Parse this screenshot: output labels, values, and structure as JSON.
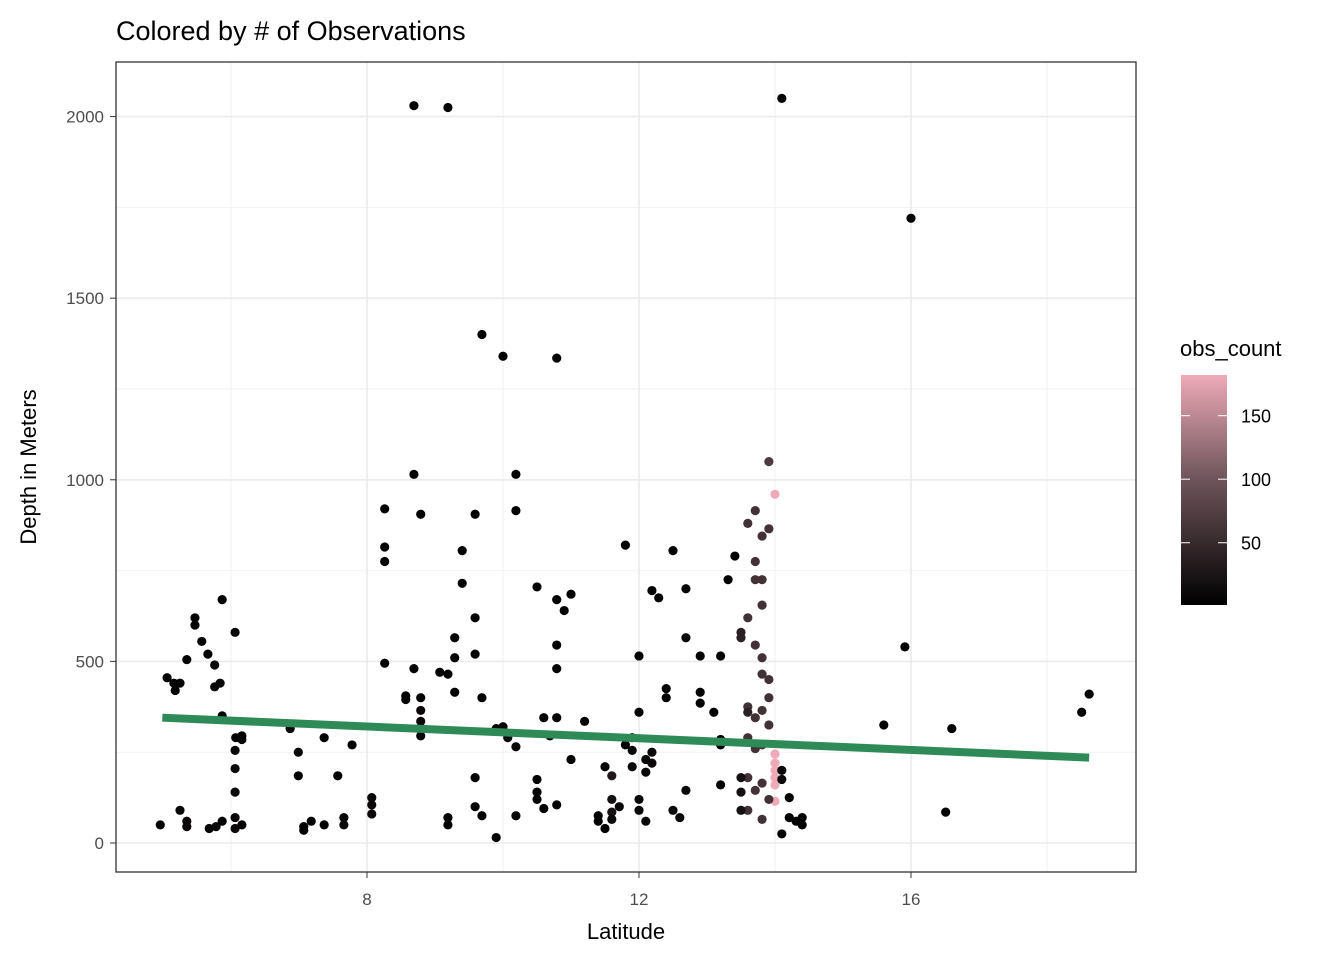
{
  "chart_data": {
    "type": "scatter",
    "title": "Colored by # of Observations",
    "xlabel": "Latitude",
    "ylabel": "Depth in Meters",
    "xlim": [
      4.6,
      19.6
    ],
    "ylim": [
      -80,
      2150
    ],
    "x_ticks": [
      {
        "value": 8,
        "label": "8"
      },
      {
        "value": 12,
        "label": "12"
      },
      {
        "value": 16,
        "label": "16"
      }
    ],
    "y_ticks": [
      {
        "value": 0,
        "label": "0"
      },
      {
        "value": 500,
        "label": "500"
      },
      {
        "value": 1000,
        "label": "1000"
      },
      {
        "value": 1500,
        "label": "1500"
      },
      {
        "value": 2000,
        "label": "2000"
      }
    ],
    "grid": true,
    "legend": {
      "title": "obs_count",
      "placement": "right",
      "range": [
        1,
        182
      ],
      "ticks": [
        {
          "value": 50,
          "label": "50"
        },
        {
          "value": 100,
          "label": "100"
        },
        {
          "value": 150,
          "label": "150"
        }
      ],
      "low_color": "#000000",
      "mid_color": "#6f555b",
      "high_color": "#eeaab8"
    },
    "trend_line": {
      "type": "linear",
      "color": "#2e8b57",
      "x": [
        4.99,
        18.62
      ],
      "y": [
        345,
        235
      ]
    },
    "points": [
      [
        4.96,
        50,
        5
      ],
      [
        5.06,
        455,
        5
      ],
      [
        5.16,
        440,
        5
      ],
      [
        5.18,
        420,
        5
      ],
      [
        5.25,
        440,
        5
      ],
      [
        5.25,
        90,
        10
      ],
      [
        5.35,
        60,
        10
      ],
      [
        5.35,
        45,
        10
      ],
      [
        5.35,
        505,
        5
      ],
      [
        5.47,
        620,
        5
      ],
      [
        5.47,
        600,
        5
      ],
      [
        5.57,
        555,
        5
      ],
      [
        5.66,
        520,
        5
      ],
      [
        5.68,
        40,
        5
      ],
      [
        5.76,
        490,
        10
      ],
      [
        5.76,
        430,
        10
      ],
      [
        5.78,
        45,
        10
      ],
      [
        5.84,
        440,
        10
      ],
      [
        5.87,
        670,
        5
      ],
      [
        5.87,
        60,
        5
      ],
      [
        5.87,
        350,
        5
      ],
      [
        6.06,
        580,
        10
      ],
      [
        6.06,
        255,
        10
      ],
      [
        6.06,
        205,
        10
      ],
      [
        6.06,
        140,
        10
      ],
      [
        6.06,
        70,
        10
      ],
      [
        6.06,
        40,
        10
      ],
      [
        6.07,
        290,
        5
      ],
      [
        6.16,
        295,
        5
      ],
      [
        6.16,
        285,
        5
      ],
      [
        6.16,
        50,
        5
      ],
      [
        6.87,
        315,
        10
      ],
      [
        6.99,
        250,
        10
      ],
      [
        6.99,
        185,
        5
      ],
      [
        7.07,
        45,
        5
      ],
      [
        7.07,
        35,
        5
      ],
      [
        7.18,
        60,
        5
      ],
      [
        7.37,
        290,
        5
      ],
      [
        7.37,
        50,
        5
      ],
      [
        7.57,
        185,
        5
      ],
      [
        7.66,
        70,
        10
      ],
      [
        7.66,
        50,
        10
      ],
      [
        7.78,
        270,
        5
      ],
      [
        8.07,
        125,
        10
      ],
      [
        8.07,
        105,
        10
      ],
      [
        8.07,
        80,
        10
      ],
      [
        8.26,
        920,
        5
      ],
      [
        8.26,
        815,
        5
      ],
      [
        8.26,
        775,
        5
      ],
      [
        8.26,
        495,
        5
      ],
      [
        8.57,
        405,
        5
      ],
      [
        8.57,
        395,
        5
      ],
      [
        8.69,
        2030,
        5
      ],
      [
        8.69,
        1015,
        5
      ],
      [
        8.69,
        480,
        5
      ],
      [
        8.79,
        905,
        5
      ],
      [
        8.79,
        400,
        5
      ],
      [
        8.79,
        365,
        10
      ],
      [
        8.79,
        335,
        10
      ],
      [
        8.79,
        295,
        10
      ],
      [
        9.07,
        470,
        5
      ],
      [
        9.19,
        2025,
        5
      ],
      [
        9.19,
        465,
        5
      ],
      [
        9.19,
        70,
        5
      ],
      [
        9.19,
        50,
        5
      ],
      [
        9.29,
        565,
        5
      ],
      [
        9.29,
        510,
        5
      ],
      [
        9.29,
        415,
        5
      ],
      [
        9.4,
        805,
        5
      ],
      [
        9.4,
        715,
        5
      ],
      [
        9.59,
        905,
        5
      ],
      [
        9.59,
        620,
        5
      ],
      [
        9.59,
        520,
        5
      ],
      [
        9.59,
        180,
        5
      ],
      [
        9.59,
        100,
        5
      ],
      [
        9.69,
        1400,
        5
      ],
      [
        9.69,
        400,
        5
      ],
      [
        9.69,
        75,
        5
      ],
      [
        9.9,
        315,
        5
      ],
      [
        9.9,
        15,
        5
      ],
      [
        10.0,
        1340,
        5
      ],
      [
        10.0,
        320,
        5
      ],
      [
        10.07,
        290,
        10
      ],
      [
        10.19,
        1015,
        5
      ],
      [
        10.19,
        915,
        5
      ],
      [
        10.19,
        265,
        10
      ],
      [
        10.19,
        75,
        10
      ],
      [
        10.5,
        705,
        5
      ],
      [
        10.5,
        175,
        5
      ],
      [
        10.5,
        140,
        5
      ],
      [
        10.5,
        120,
        5
      ],
      [
        10.6,
        345,
        5
      ],
      [
        10.6,
        95,
        5
      ],
      [
        10.69,
        295,
        5
      ],
      [
        10.79,
        1335,
        5
      ],
      [
        10.79,
        670,
        5
      ],
      [
        10.79,
        545,
        5
      ],
      [
        10.79,
        480,
        5
      ],
      [
        10.79,
        345,
        5
      ],
      [
        10.79,
        105,
        5
      ],
      [
        10.9,
        640,
        5
      ],
      [
        11.0,
        685,
        5
      ],
      [
        11.0,
        230,
        5
      ],
      [
        11.2,
        335,
        5
      ],
      [
        11.4,
        75,
        5
      ],
      [
        11.4,
        60,
        5
      ],
      [
        11.5,
        210,
        10
      ],
      [
        11.5,
        40,
        5
      ],
      [
        11.6,
        185,
        30
      ],
      [
        11.6,
        120,
        20
      ],
      [
        11.6,
        85,
        20
      ],
      [
        11.6,
        65,
        10
      ],
      [
        11.71,
        100,
        10
      ],
      [
        11.8,
        820,
        5
      ],
      [
        11.8,
        270,
        5
      ],
      [
        11.9,
        290,
        10
      ],
      [
        11.9,
        255,
        10
      ],
      [
        11.9,
        210,
        10
      ],
      [
        12.0,
        515,
        5
      ],
      [
        12.0,
        360,
        5
      ],
      [
        12.0,
        120,
        10
      ],
      [
        12.0,
        90,
        10
      ],
      [
        12.1,
        230,
        10
      ],
      [
        12.1,
        195,
        10
      ],
      [
        12.1,
        60,
        10
      ],
      [
        12.19,
        695,
        5
      ],
      [
        12.19,
        250,
        10
      ],
      [
        12.19,
        220,
        10
      ],
      [
        12.29,
        675,
        5
      ],
      [
        12.4,
        425,
        5
      ],
      [
        12.4,
        400,
        5
      ],
      [
        12.5,
        805,
        5
      ],
      [
        12.5,
        90,
        10
      ],
      [
        12.6,
        70,
        10
      ],
      [
        12.69,
        700,
        5
      ],
      [
        12.69,
        565,
        10
      ],
      [
        12.69,
        145,
        10
      ],
      [
        12.9,
        415,
        5
      ],
      [
        12.9,
        385,
        5
      ],
      [
        12.9,
        515,
        5
      ],
      [
        13.1,
        360,
        5
      ],
      [
        13.2,
        285,
        5
      ],
      [
        13.2,
        270,
        5
      ],
      [
        13.2,
        515,
        5
      ],
      [
        13.2,
        160,
        5
      ],
      [
        13.31,
        725,
        5
      ],
      [
        13.41,
        790,
        5
      ],
      [
        13.5,
        580,
        40
      ],
      [
        13.5,
        565,
        40
      ],
      [
        13.6,
        880,
        60
      ],
      [
        13.71,
        915,
        60
      ],
      [
        13.71,
        775,
        60
      ],
      [
        13.71,
        725,
        60
      ],
      [
        13.81,
        845,
        60
      ],
      [
        13.81,
        655,
        60
      ],
      [
        13.81,
        725,
        60
      ],
      [
        13.91,
        1050,
        70
      ],
      [
        13.91,
        865,
        60
      ],
      [
        14.0,
        960,
        182
      ],
      [
        13.6,
        620,
        60
      ],
      [
        13.71,
        545,
        60
      ],
      [
        13.81,
        510,
        60
      ],
      [
        13.81,
        465,
        60
      ],
      [
        13.91,
        450,
        60
      ],
      [
        13.91,
        400,
        60
      ],
      [
        13.6,
        375,
        60
      ],
      [
        13.6,
        360,
        40
      ],
      [
        13.71,
        345,
        60
      ],
      [
        13.81,
        365,
        60
      ],
      [
        13.91,
        325,
        60
      ],
      [
        13.6,
        290,
        60
      ],
      [
        13.71,
        260,
        60
      ],
      [
        13.81,
        270,
        60
      ],
      [
        14.0,
        245,
        182
      ],
      [
        14.0,
        220,
        182
      ],
      [
        14.0,
        200,
        182
      ],
      [
        14.0,
        180,
        182
      ],
      [
        14.0,
        160,
        182
      ],
      [
        14.0,
        115,
        182
      ],
      [
        14.1,
        200,
        10
      ],
      [
        14.1,
        175,
        10
      ],
      [
        13.6,
        180,
        60
      ],
      [
        13.71,
        145,
        60
      ],
      [
        13.81,
        165,
        60
      ],
      [
        13.91,
        120,
        60
      ],
      [
        13.6,
        90,
        60
      ],
      [
        13.81,
        65,
        60
      ],
      [
        13.5,
        180,
        20
      ],
      [
        13.5,
        140,
        20
      ],
      [
        13.5,
        90,
        20
      ],
      [
        14.21,
        125,
        5
      ],
      [
        14.21,
        70,
        5
      ],
      [
        14.31,
        60,
        5
      ],
      [
        14.4,
        70,
        5
      ],
      [
        14.4,
        50,
        5
      ],
      [
        14.1,
        25,
        5
      ],
      [
        14.1,
        2050,
        5
      ],
      [
        15.6,
        325,
        5
      ],
      [
        15.91,
        540,
        5
      ],
      [
        16.0,
        1720,
        5
      ],
      [
        16.51,
        85,
        5
      ],
      [
        16.6,
        315,
        5
      ],
      [
        18.51,
        360,
        5
      ],
      [
        18.62,
        410,
        5
      ]
    ]
  }
}
